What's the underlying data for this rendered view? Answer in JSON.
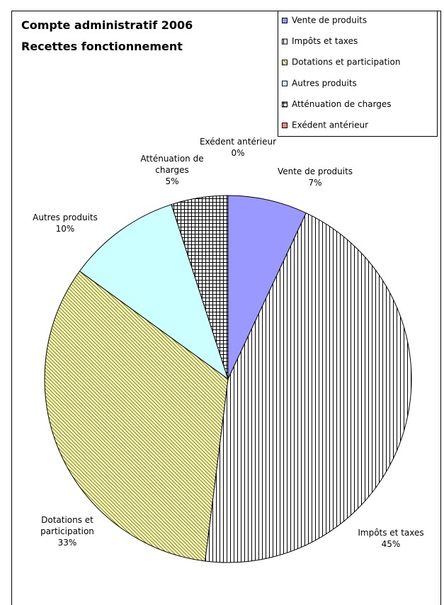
{
  "chart_data": {
    "type": "pie",
    "title": "Compte administratif 2006",
    "subtitle": "Recettes fonctionnement",
    "categories": [
      "Vente de produits",
      "Impôts et taxes",
      "Dotations et participation",
      "Autres produits",
      "Atténuation de charges",
      "Exédent antérieur"
    ],
    "values": [
      7,
      45,
      33,
      10,
      5,
      0
    ],
    "value_labels": [
      "7%",
      "45%",
      "33%",
      "10%",
      "5%",
      "0%"
    ],
    "colors": [
      "#9999ff",
      "#ffffff",
      "#ffffcc",
      "#ccffff",
      "#ffffff",
      "#ff8080"
    ],
    "patterns": [
      null,
      "vertical",
      "diagonal",
      null,
      "grid",
      null
    ],
    "legend": "top-right"
  }
}
